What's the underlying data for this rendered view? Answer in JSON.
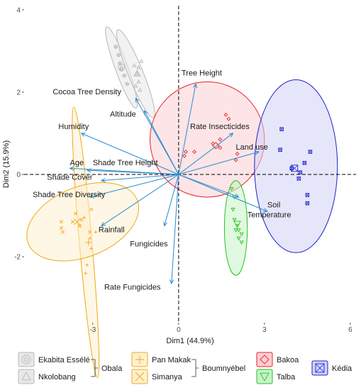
{
  "chart_data": {
    "type": "scatter",
    "title": "",
    "xlabel": "Dim1 (44.9%)",
    "ylabel": "Dim2 (15.9%)",
    "xlim": [
      -5.4,
      6.2
    ],
    "ylim": [
      -3.6,
      4.1
    ],
    "x_ticks": [
      -3,
      0,
      3,
      6
    ],
    "y_ticks": [
      -2,
      0,
      2,
      4
    ],
    "grid": false,
    "reference_lines": {
      "x": 0,
      "y": 0,
      "style": "dashed"
    },
    "variables": [
      {
        "name": "Tree Height",
        "x": 0.6,
        "y": 2.2,
        "label_x": 0.1,
        "label_y": 2.4
      },
      {
        "name": "Cocoa Tree Density",
        "x": -1.5,
        "y": 1.85,
        "label_x": -4.4,
        "label_y": 1.95
      },
      {
        "name": "Altitude",
        "x": -1.2,
        "y": 1.55,
        "label_x": -2.4,
        "label_y": 1.4
      },
      {
        "name": "Humidity",
        "x": -3.4,
        "y": 1.0,
        "label_x": -4.2,
        "label_y": 1.1
      },
      {
        "name": "Rate Insecticides",
        "x": 1.9,
        "y": 1.0,
        "label_x": 0.4,
        "label_y": 1.1
      },
      {
        "name": "Land use",
        "x": 2.8,
        "y": 0.55,
        "label_x": 2.0,
        "label_y": 0.6
      },
      {
        "name": "Age",
        "x": -3.8,
        "y": 0.15,
        "label_x": -3.8,
        "label_y": 0.22
      },
      {
        "name": "Shade Tree Height",
        "x": -3.2,
        "y": 0.1,
        "label_x": -3.0,
        "label_y": 0.22
      },
      {
        "name": "Shade Cover",
        "x": -2.7,
        "y": -0.15,
        "label_x": -4.6,
        "label_y": -0.13
      },
      {
        "name": "Shade Tree Diversity",
        "x": -3.1,
        "y": -0.55,
        "label_x": -5.1,
        "label_y": -0.55
      },
      {
        "name": "Soil",
        "x": 3.1,
        "y": -0.9,
        "label_x": 3.1,
        "label_y": -0.8
      },
      {
        "name": "Temperature",
        "x": 2.1,
        "y": -0.55,
        "label_x": 2.4,
        "label_y": -1.04
      },
      {
        "name": "Rainfall",
        "x": -2.7,
        "y": -1.25,
        "label_x": -2.8,
        "label_y": -1.4
      },
      {
        "name": "Fungicides",
        "x": -0.5,
        "y": -1.25,
        "label_x": -1.7,
        "label_y": -1.75
      },
      {
        "name": "Rate Fungicides",
        "x": -0.25,
        "y": -2.65,
        "label_x": -2.6,
        "label_y": -2.8
      }
    ],
    "series": [
      {
        "name": "Ekabita Essélé",
        "group": "Obala",
        "marker": "circle-ring",
        "color": "#b8b8b8",
        "fill": "#e8e8e8",
        "points": [
          [
            -2.2,
            3.1
          ],
          [
            -2.05,
            2.7
          ],
          [
            -1.9,
            2.4
          ],
          [
            -2.1,
            2.9
          ],
          [
            -1.8,
            2.2
          ],
          [
            -2.0,
            2.55
          ]
        ],
        "ellipse": {
          "cx": -2.0,
          "cy": 2.6,
          "rx": 0.22,
          "ry": 1.05,
          "angle_deg": 20
        }
      },
      {
        "name": "Nkolobang",
        "group": "Obala",
        "marker": "triangle",
        "color": "#b8b8b8",
        "fill": "#e8e8e8",
        "points": [
          [
            -1.55,
            2.65
          ],
          [
            -1.45,
            2.45
          ],
          [
            -1.4,
            2.6
          ],
          [
            -1.4,
            2.25
          ],
          [
            -1.35,
            2.05
          ],
          [
            -1.3,
            2.75
          ],
          [
            -1.5,
            2.15
          ]
        ],
        "ellipse": {
          "cx": -1.5,
          "cy": 2.45,
          "rx": 0.26,
          "ry": 1.15,
          "angle_deg": 22
        }
      },
      {
        "name": "Pan Makak",
        "group": "Boumnyébel",
        "marker": "plus",
        "color": "#f0a818",
        "fill": "#fdf0cf",
        "points": [
          [
            -3.3,
            -1.05
          ],
          [
            -3.1,
            -1.55
          ],
          [
            -3.05,
            -1.8
          ],
          [
            -3.2,
            -2.2
          ],
          [
            -3.25,
            -2.4
          ],
          [
            -2.9,
            -1.4
          ]
        ],
        "ellipse": {
          "cx": -3.25,
          "cy": -1.65,
          "rx": 0.22,
          "ry": 3.3,
          "angle_deg": 5
        }
      },
      {
        "name": "Simanya",
        "group": "Boumnyébel",
        "marker": "x",
        "color": "#f0a818",
        "fill": "#fdf0cf",
        "points": [
          [
            -4.1,
            -1.15
          ],
          [
            -4.1,
            -1.3
          ],
          [
            -4.05,
            -1.4
          ],
          [
            -3.6,
            -0.95
          ],
          [
            -3.4,
            -1.1
          ],
          [
            -3.45,
            -1.25
          ],
          [
            -3.1,
            -1.4
          ],
          [
            -3.05,
            -0.85
          ],
          [
            -3.7,
            -1.15
          ]
        ],
        "ellipse": {
          "cx": -3.35,
          "cy": -1.15,
          "rx": 2.05,
          "ry": 0.85,
          "angle_deg": 22
        }
      },
      {
        "name": "Bakoa",
        "group": "",
        "marker": "diamond",
        "color": "#e8202a",
        "fill": "#fbd0d3",
        "points": [
          [
            1.65,
            1.45
          ],
          [
            1.75,
            1.35
          ],
          [
            1.45,
            0.85
          ],
          [
            1.2,
            0.75
          ],
          [
            0.25,
            0.55
          ],
          [
            0.2,
            0.45
          ],
          [
            2.05,
            0.5
          ],
          [
            2.0,
            0.35
          ],
          [
            1.45,
            0.65
          ],
          [
            0.55,
            0.55
          ]
        ],
        "ellipse": {
          "cx": 1.0,
          "cy": 0.85,
          "rx": 2.0,
          "ry": 1.4,
          "angle_deg": 0
        }
      },
      {
        "name": "Talba",
        "group": "",
        "marker": "triangle-down",
        "color": "#22c520",
        "fill": "#c8f2c8",
        "points": [
          [
            1.85,
            -0.35
          ],
          [
            1.95,
            -0.55
          ],
          [
            1.9,
            -0.85
          ],
          [
            1.95,
            -1.1
          ],
          [
            2.05,
            -1.25
          ],
          [
            2.1,
            -1.35
          ],
          [
            2.2,
            -1.45
          ],
          [
            2.1,
            -1.55
          ],
          [
            2.2,
            -1.65
          ],
          [
            2.0,
            -1.35
          ]
        ],
        "ellipse": {
          "cx": 2.0,
          "cy": -1.3,
          "rx": 0.4,
          "ry": 1.15,
          "angle_deg": 0
        }
      },
      {
        "name": "Kédia",
        "group": "",
        "marker": "square-cross",
        "color": "#1f23c8",
        "fill": "#d2d2f5",
        "points": [
          [
            3.6,
            1.1
          ],
          [
            4.6,
            0.55
          ],
          [
            3.55,
            0.6
          ],
          [
            4.4,
            0.28
          ],
          [
            4.25,
            0.05
          ],
          [
            4.2,
            -0.1
          ],
          [
            4.5,
            -0.5
          ],
          [
            4.5,
            -0.7
          ],
          [
            3.95,
            0.15
          ]
        ],
        "ellipse": {
          "cx": 4.1,
          "cy": 0.2,
          "rx": 1.45,
          "ry": 2.1,
          "angle_deg": 0
        }
      }
    ],
    "group_means": [
      {
        "name": "Ekabita Essélé",
        "x": -2.0,
        "y": 2.6
      },
      {
        "name": "Nkolobang",
        "x": -1.45,
        "y": 2.45
      },
      {
        "name": "Pan Makak",
        "x": -3.15,
        "y": -1.65
      },
      {
        "name": "Simanya",
        "x": -3.55,
        "y": -1.15
      },
      {
        "name": "Bakoa",
        "x": 1.3,
        "y": 0.7
      },
      {
        "name": "Talba",
        "x": 2.05,
        "y": -1.2
      },
      {
        "name": "Kédia",
        "x": 4.05,
        "y": 0.15
      }
    ],
    "legend": {
      "placement": "bottom",
      "groups": [
        {
          "label": "Obala",
          "members": [
            "Ekabita Essélé",
            "Nkolobang"
          ]
        },
        {
          "label": "Boumnyébel",
          "members": [
            "Pan Makak",
            "Simanya"
          ]
        }
      ],
      "entries": [
        "Ekabita Essélé",
        "Nkolobang",
        "Pan Makak",
        "Simanya",
        "Bakoa",
        "Talba",
        "Kédia"
      ]
    },
    "colors": {
      "arrow": "#2b8bcf",
      "axis_text": "#4d4d4d"
    }
  }
}
